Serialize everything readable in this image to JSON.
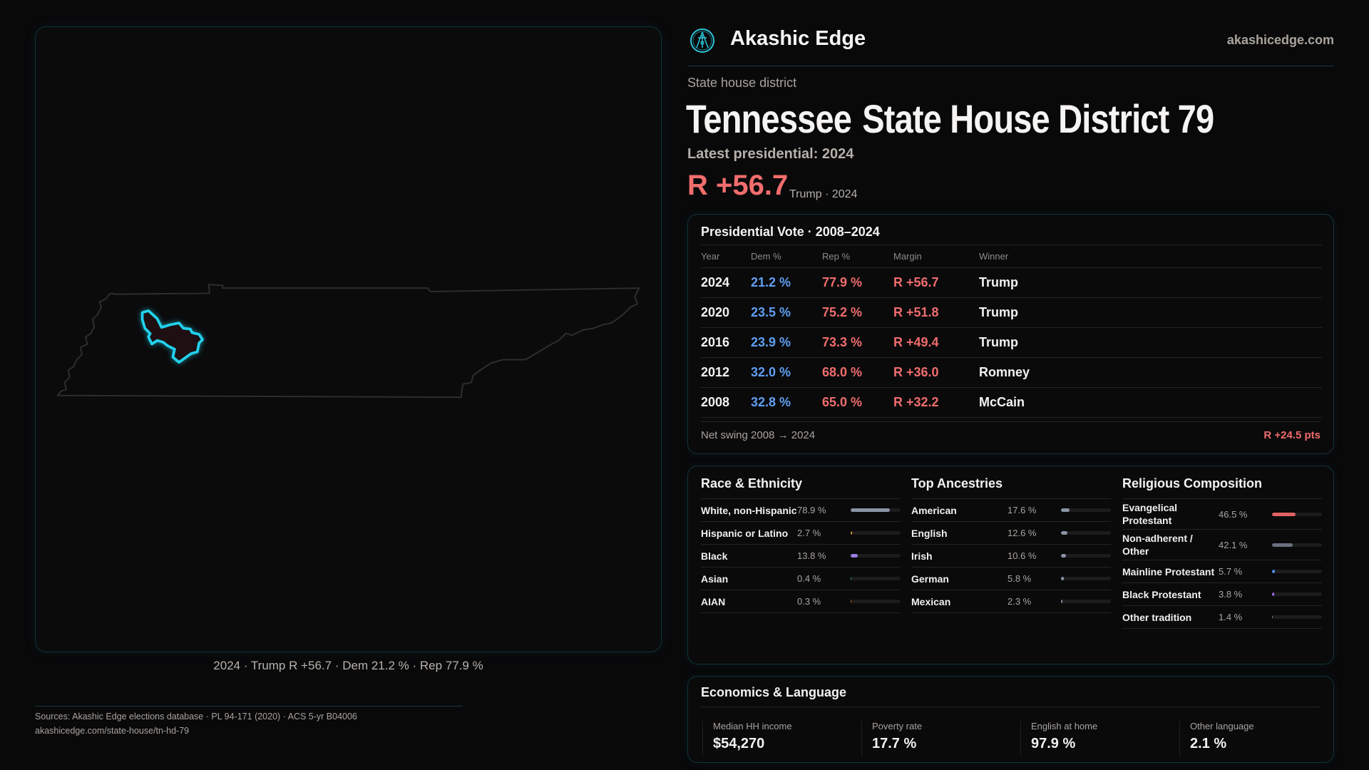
{
  "brand": {
    "name": "Akashic Edge",
    "site": "akashicedge.com",
    "logo_icon": "akashic-seal-icon"
  },
  "header": {
    "eyebrow": "State house district",
    "title_state": "Tennessee",
    "title_district": "State House District 79",
    "latest": "Latest presidential: 2024",
    "margin": "R +56.7",
    "margin_sub": "Trump · 2024"
  },
  "map": {
    "caption": "2024 · Trump R +56.7 · Dem 21.2 % · Rep 77.9 %",
    "highlight_color": "#22d3ee"
  },
  "colors": {
    "dem": "#5f9ff2",
    "rep": "#f06c6c",
    "accent": "#22d3ee"
  },
  "vote": {
    "title": "Presidential Vote · 2008–2024",
    "columns": [
      "Year",
      "Dem %",
      "Rep %",
      "Margin",
      "Winner"
    ],
    "rows": [
      {
        "year": "2024",
        "dem": "21.2 %",
        "rep": "77.9 %",
        "margin": "R +56.7",
        "winner": "Trump"
      },
      {
        "year": "2020",
        "dem": "23.5 %",
        "rep": "75.2 %",
        "margin": "R +51.8",
        "winner": "Trump"
      },
      {
        "year": "2016",
        "dem": "23.9 %",
        "rep": "73.3 %",
        "margin": "R +49.4",
        "winner": "Trump"
      },
      {
        "year": "2012",
        "dem": "32.0 %",
        "rep": "68.0 %",
        "margin": "R +36.0",
        "winner": "Romney"
      },
      {
        "year": "2008",
        "dem": "32.8 %",
        "rep": "65.0 %",
        "margin": "R +32.2",
        "winner": "McCain"
      }
    ],
    "swing_label": "Net swing 2008 → 2024",
    "swing_value": "R +24.5 pts"
  },
  "demographics": [
    {
      "title": "Race & Ethnicity",
      "items": [
        {
          "label": "White, non-Hispanic",
          "value": "78.9 %",
          "pct": 78.9,
          "color": "#8b94a6"
        },
        {
          "label": "Hispanic or Latino",
          "value": "2.7 %",
          "pct": 2.7,
          "color": "#d8962c"
        },
        {
          "label": "Black",
          "value": "13.8 %",
          "pct": 13.8,
          "color": "#9a7ce0"
        },
        {
          "label": "Asian",
          "value": "0.4 %",
          "pct": 0.4,
          "color": "#2bb39a"
        },
        {
          "label": "AIAN",
          "value": "0.3 %",
          "pct": 0.3,
          "color": "#c8702a"
        }
      ]
    },
    {
      "title": "Top Ancestries",
      "items": [
        {
          "label": "American",
          "value": "17.6 %",
          "pct": 17.6,
          "color": "#8b94a6"
        },
        {
          "label": "English",
          "value": "12.6 %",
          "pct": 12.6,
          "color": "#8b94a6"
        },
        {
          "label": "Irish",
          "value": "10.6 %",
          "pct": 10.6,
          "color": "#8b94a6"
        },
        {
          "label": "German",
          "value": "5.8 %",
          "pct": 5.8,
          "color": "#8b94a6"
        },
        {
          "label": "Mexican",
          "value": "2.3 %",
          "pct": 2.3,
          "color": "#8b94a6"
        }
      ]
    },
    {
      "title": "Religious Composition",
      "items": [
        {
          "label": "Evangelical Protestant",
          "value": "46.5 %",
          "pct": 46.5,
          "color": "#e06262"
        },
        {
          "label": "Non-adherent / Other",
          "value": "42.1 %",
          "pct": 42.1,
          "color": "#6b7080"
        },
        {
          "label": "Mainline Protestant",
          "value": "5.7 %",
          "pct": 5.7,
          "color": "#4a8ce0"
        },
        {
          "label": "Black Protestant",
          "value": "3.8 %",
          "pct": 3.8,
          "color": "#9b6be0"
        },
        {
          "label": "Other tradition",
          "value": "1.4 %",
          "pct": 1.4,
          "color": "#888888"
        }
      ]
    }
  ],
  "economics": {
    "title": "Economics & Language",
    "stats": [
      {
        "label": "Median HH income",
        "value": "$54,270"
      },
      {
        "label": "Poverty rate",
        "value": "17.7 %"
      },
      {
        "label": "English at home",
        "value": "97.9 %"
      },
      {
        "label": "Other language",
        "value": "2.1 %"
      }
    ]
  },
  "sources": {
    "line1": "Sources: Akashic Edge elections database · PL 94-171 (2020) · ACS 5-yr B04006",
    "line2": "akashicedge.com/state-house/tn-hd-79"
  }
}
